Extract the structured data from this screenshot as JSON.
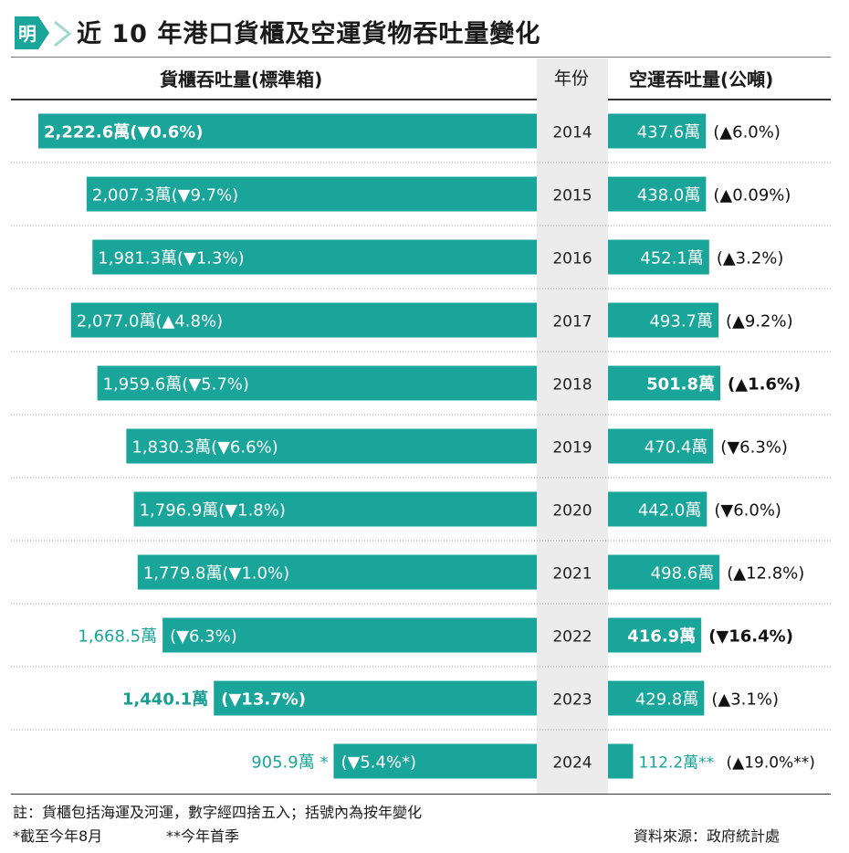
{
  "title": "近 10 年港口貨櫃及空運貨物吞吐量變化",
  "logo_text": "明",
  "colors": {
    "bar": "#1aa59a",
    "text_teal": "#1aa59a",
    "accent_arrow": "#3aaea5"
  },
  "headers": {
    "container": "貨櫃吞吐量(標準箱)",
    "year": "年份",
    "air": "空運吞吐量(公噸)"
  },
  "chart_data": {
    "type": "bar",
    "categories": [
      "2014",
      "2015",
      "2016",
      "2017",
      "2018",
      "2019",
      "2020",
      "2021",
      "2022",
      "2023",
      "2024"
    ],
    "series": [
      {
        "name": "貨櫃吞吐量(標準箱)",
        "values": [
          2222.6,
          2007.3,
          1981.3,
          2077.0,
          1959.6,
          1830.3,
          1796.9,
          1779.8,
          1668.5,
          1440.1,
          905.9
        ],
        "labels": [
          "2,222.6萬",
          "2,007.3萬",
          "1,981.3萬",
          "2,077.0萬",
          "1,959.6萬",
          "1,830.3萬",
          "1,796.9萬",
          "1,779.8萬",
          "1,668.5萬",
          "1,440.1萬",
          "905.9萬 *"
        ],
        "changes": [
          "(▼0.6%)",
          "(▼9.7%)",
          "(▼1.3%)",
          "(▲4.8%)",
          "(▼5.7%)",
          "(▼6.6%)",
          "(▼1.8%)",
          "(▼1.0%)",
          "(▼6.3%)",
          "(▼13.7%)",
          "(▼5.4%*)"
        ],
        "bold": [
          true,
          false,
          false,
          false,
          false,
          false,
          false,
          false,
          false,
          true,
          false
        ]
      },
      {
        "name": "空運吞吐量(公噸)",
        "values": [
          437.6,
          438.0,
          452.1,
          493.7,
          501.8,
          470.4,
          442.0,
          498.6,
          416.9,
          429.8,
          112.2
        ],
        "labels": [
          "437.6萬",
          "438.0萬",
          "452.1萬",
          "493.7萬",
          "501.8萬",
          "470.4萬",
          "442.0萬",
          "498.6萬",
          "416.9萬",
          "429.8萬",
          "112.2萬**"
        ],
        "changes": [
          "(▲6.0%)",
          "(▲0.09%)",
          "(▲3.2%)",
          "(▲9.2%)",
          "(▲1.6%)",
          "(▼6.3%)",
          "(▼6.0%)",
          "(▲12.8%)",
          "(▼16.4%)",
          "(▲3.1%)",
          "(▲19.0%**)"
        ],
        "bold": [
          false,
          false,
          false,
          false,
          true,
          false,
          false,
          false,
          true,
          false,
          false
        ]
      }
    ]
  },
  "footnotes": {
    "note": "註：貨櫃包括海運及河運，數字經四捨五入；括號內為按年變化",
    "star": "*截至今年8月",
    "double_star": "**今年首季",
    "source": "資料來源：政府統計處"
  }
}
